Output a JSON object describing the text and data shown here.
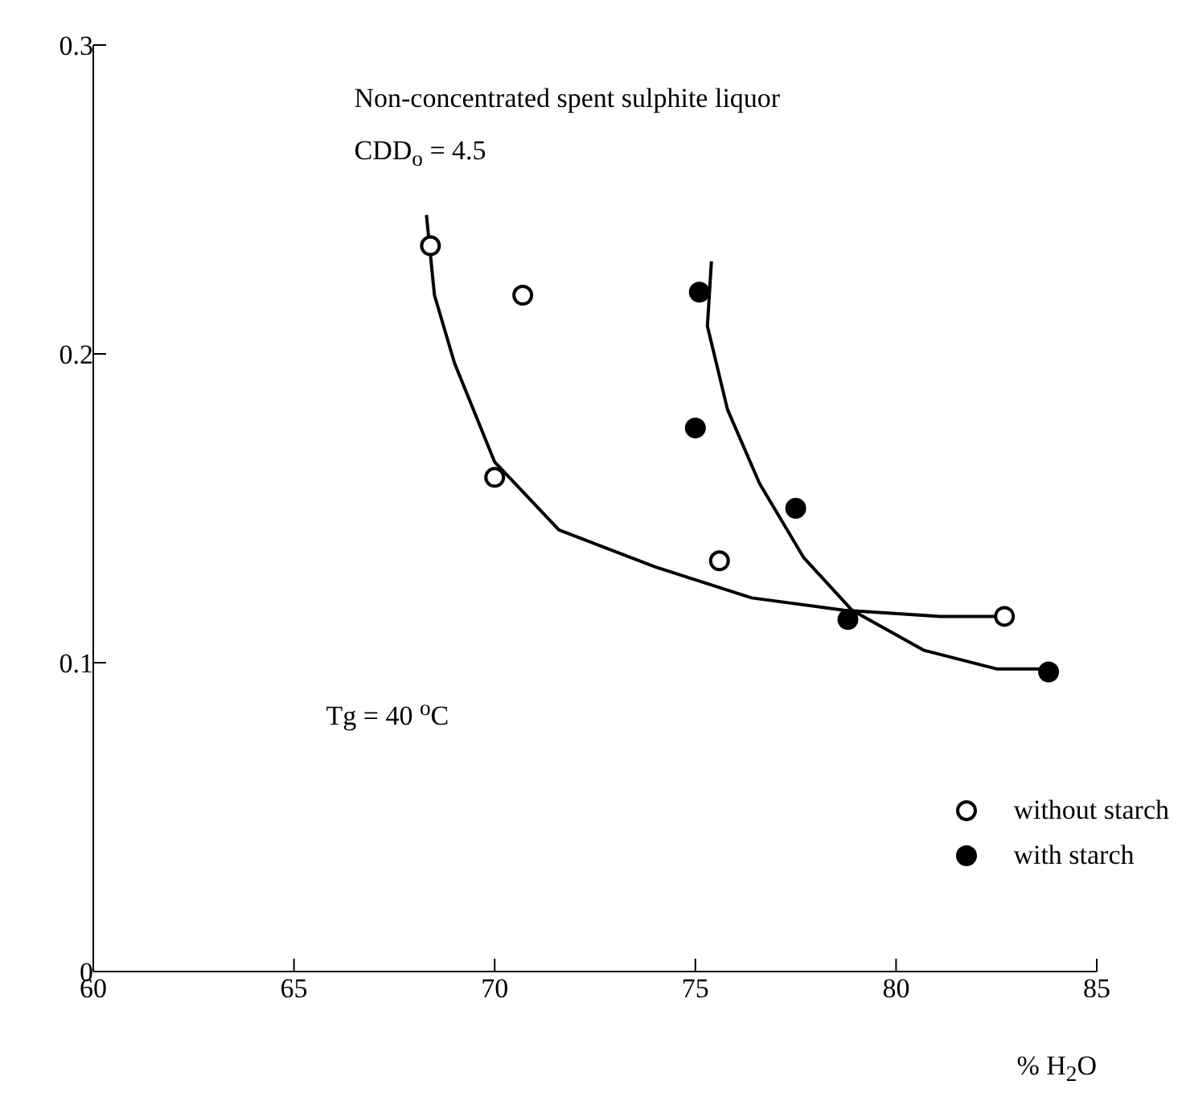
{
  "chart_data": {
    "type": "scatter",
    "xlabel": "% H$_{2}$O",
    "annotations": [
      "Non-concentrated  spent sulphite liquor",
      "CDD$_{o}$ = 4.5",
      "Tg = 40 $^{o}$C"
    ],
    "xlim": [
      60,
      85
    ],
    "xticks": [
      60,
      65,
      70,
      75,
      80,
      85
    ],
    "ylim": [
      0,
      0.3
    ],
    "yticks": [
      0,
      0.1,
      0.2,
      0.3
    ],
    "grid": false,
    "legend": "bottom right",
    "marker": "circle",
    "series": [
      {
        "name": "without starch",
        "color": "#ffffff",
        "x": [
          68.4,
          70.7,
          70.0,
          75.6,
          82.7
        ],
        "values": [
          0.235,
          0.219,
          0.16,
          0.133,
          0.115
        ]
      },
      {
        "name": "with starch",
        "color": "#000000",
        "x": [
          75.1,
          75.0,
          77.5,
          78.8,
          83.8
        ],
        "values": [
          0.22,
          0.176,
          0.15,
          0.114,
          0.097
        ]
      },
      {
        "type": "line",
        "marker": "none",
        "color": "#000000",
        "x": [
          68.3,
          68.5,
          69.0,
          70.0,
          71.6,
          74.0,
          76.4,
          78.7,
          81.1,
          82.5
        ],
        "values": [
          0.245,
          0.219,
          0.197,
          0.165,
          0.143,
          0.131,
          0.121,
          0.117,
          0.115,
          0.115
        ]
      },
      {
        "type": "line",
        "marker": "none",
        "color": "#000000",
        "x": [
          75.4,
          75.3,
          75.8,
          76.6,
          77.7,
          78.9,
          80.7,
          82.5,
          83.7
        ],
        "values": [
          0.23,
          0.209,
          0.182,
          0.158,
          0.134,
          0.117,
          0.104,
          0.098,
          0.098
        ]
      }
    ]
  }
}
